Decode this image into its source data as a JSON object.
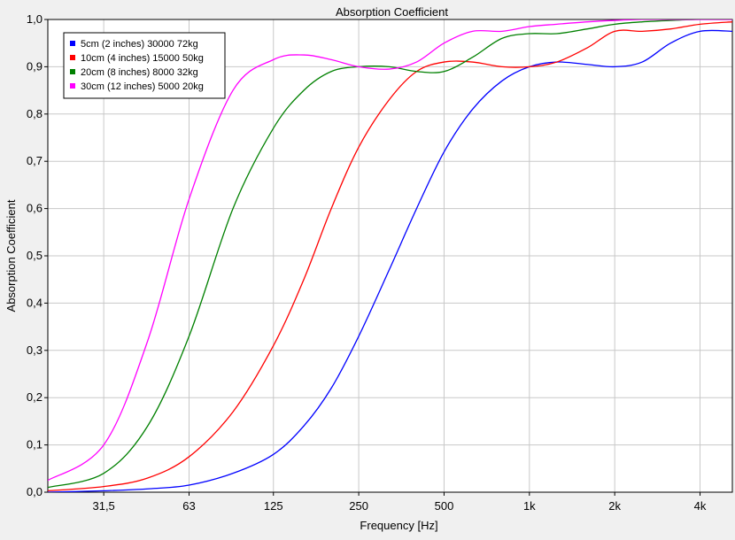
{
  "chart_data": {
    "type": "line",
    "title": "Absorption Coefficient",
    "xlabel": "Frequency [Hz]",
    "ylabel": "Absorption Coefficient",
    "x_scale": "log",
    "xlim": [
      20,
      5200
    ],
    "ylim": [
      0,
      1
    ],
    "grid": true,
    "legend_position": "top-left",
    "x_ticks": [
      {
        "value": 31.5,
        "label": "31,5"
      },
      {
        "value": 63,
        "label": "63"
      },
      {
        "value": 125,
        "label": "125"
      },
      {
        "value": 250,
        "label": "250"
      },
      {
        "value": 500,
        "label": "500"
      },
      {
        "value": 1000,
        "label": "1k"
      },
      {
        "value": 2000,
        "label": "2k"
      },
      {
        "value": 4000,
        "label": "4k"
      }
    ],
    "y_ticks": [
      {
        "value": 0.0,
        "label": "0,0"
      },
      {
        "value": 0.1,
        "label": "0,1"
      },
      {
        "value": 0.2,
        "label": "0,2"
      },
      {
        "value": 0.3,
        "label": "0,3"
      },
      {
        "value": 0.4,
        "label": "0,4"
      },
      {
        "value": 0.5,
        "label": "0,5"
      },
      {
        "value": 0.6,
        "label": "0,6"
      },
      {
        "value": 0.7,
        "label": "0,7"
      },
      {
        "value": 0.8,
        "label": "0,8"
      },
      {
        "value": 0.9,
        "label": "0,9"
      },
      {
        "value": 1.0,
        "label": "1,0"
      }
    ],
    "series": [
      {
        "name": "5cm (2 inches) 30000 72kg",
        "color": "#0000ff",
        "x": [
          20,
          31.5,
          45,
          63,
          90,
          125,
          160,
          200,
          250,
          320,
          400,
          500,
          630,
          800,
          1000,
          1250,
          1600,
          2000,
          2500,
          3150,
          4000,
          5200
        ],
        "y": [
          0.0,
          0.003,
          0.007,
          0.015,
          0.04,
          0.08,
          0.14,
          0.22,
          0.33,
          0.47,
          0.6,
          0.72,
          0.81,
          0.87,
          0.9,
          0.91,
          0.905,
          0.9,
          0.91,
          0.95,
          0.975,
          0.975
        ]
      },
      {
        "name": "10cm (4 inches) 15000 50kg",
        "color": "#ff0000",
        "x": [
          20,
          31.5,
          45,
          63,
          90,
          125,
          160,
          200,
          250,
          320,
          400,
          500,
          630,
          800,
          1000,
          1250,
          1600,
          2000,
          2500,
          3150,
          4000,
          5200
        ],
        "y": [
          0.003,
          0.012,
          0.03,
          0.075,
          0.17,
          0.31,
          0.45,
          0.6,
          0.73,
          0.83,
          0.89,
          0.91,
          0.91,
          0.9,
          0.9,
          0.91,
          0.94,
          0.975,
          0.975,
          0.98,
          0.99,
          0.995
        ]
      },
      {
        "name": "20cm (8 inches) 8000 32kg",
        "color": "#008000",
        "x": [
          20,
          31.5,
          45,
          63,
          90,
          125,
          160,
          200,
          250,
          320,
          400,
          500,
          630,
          800,
          1000,
          1250,
          1600,
          2000,
          2500,
          3150,
          4000,
          5200
        ],
        "y": [
          0.01,
          0.04,
          0.14,
          0.33,
          0.6,
          0.77,
          0.85,
          0.89,
          0.9,
          0.9,
          0.89,
          0.89,
          0.92,
          0.96,
          0.97,
          0.97,
          0.98,
          0.99,
          0.995,
          0.998,
          1.0,
          1.0
        ]
      },
      {
        "name": "30cm (12 inches) 5000 20kg",
        "color": "#ff00ff",
        "x": [
          20,
          31.5,
          45,
          63,
          90,
          125,
          160,
          200,
          250,
          320,
          400,
          500,
          630,
          800,
          1000,
          1250,
          1600,
          2000,
          2500,
          3150,
          4000,
          5200
        ],
        "y": [
          0.025,
          0.1,
          0.32,
          0.62,
          0.85,
          0.915,
          0.925,
          0.915,
          0.9,
          0.895,
          0.91,
          0.95,
          0.975,
          0.975,
          0.985,
          0.99,
          0.995,
          0.998,
          1.0,
          1.0,
          1.0,
          1.0
        ]
      }
    ]
  }
}
